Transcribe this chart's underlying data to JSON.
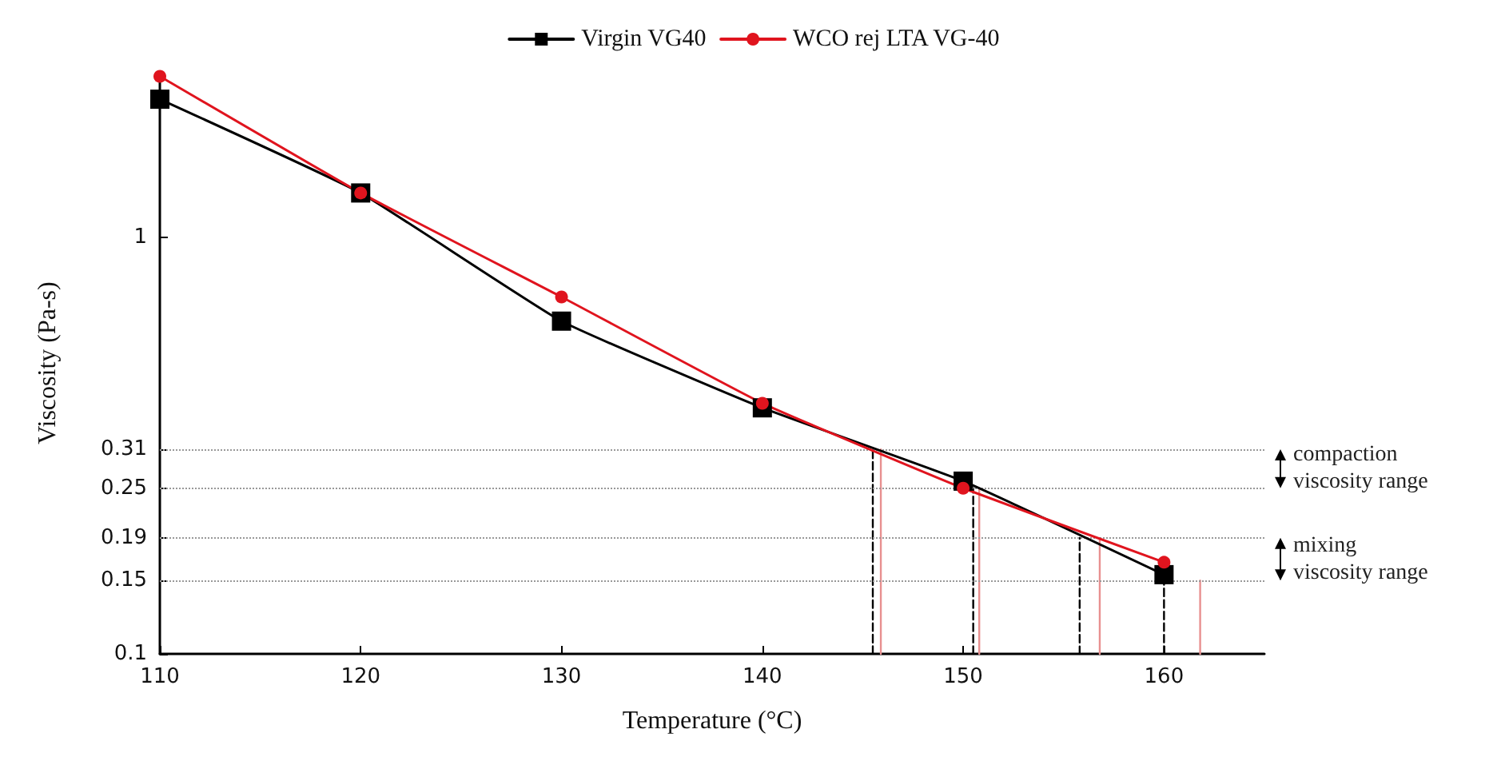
{
  "chart_data": {
    "type": "line",
    "xlabel": "Temperature (°C)",
    "ylabel": "Viscosity (Pa-s)",
    "log": "y",
    "xlim": [
      110,
      165
    ],
    "xticks": [
      110,
      120,
      130,
      140,
      150,
      160
    ],
    "ylim": [
      0.1,
      2.5
    ],
    "yticks": [
      0.1,
      0.15,
      0.19,
      0.25,
      0.31,
      1
    ],
    "x": [
      110,
      120,
      130,
      140,
      150,
      160
    ],
    "series": [
      {
        "name": "Virgin VG40",
        "color": "#000000",
        "values": [
          2.15,
          1.28,
          0.63,
          0.39,
          0.26,
          0.155
        ],
        "marker": "square"
      },
      {
        "name": "WCO rej LTA VG-40",
        "color": "#e0141e",
        "values": [
          2.44,
          1.28,
          0.72,
          0.4,
          0.25,
          0.166
        ],
        "marker": "circle"
      },
      {
        "color": "#000000",
        "x": [
          145.5,
          145.5
        ],
        "values": [
          0.1,
          0.31
        ],
        "marker": "none",
        "line_style": "dashed"
      },
      {
        "color": "#e89090",
        "x": [
          145.9,
          145.9
        ],
        "values": [
          0.1,
          0.31
        ],
        "marker": "none",
        "line_style": "solid"
      },
      {
        "color": "#000000",
        "x": [
          150.5,
          150.5
        ],
        "values": [
          0.1,
          0.25
        ],
        "marker": "none",
        "line_style": "dashed"
      },
      {
        "color": "#e89090",
        "x": [
          150.8,
          150.8
        ],
        "values": [
          0.1,
          0.25
        ],
        "marker": "none",
        "line_style": "solid"
      },
      {
        "color": "#000000",
        "x": [
          155.8,
          155.8
        ],
        "values": [
          0.1,
          0.19
        ],
        "marker": "none",
        "line_style": "dashed"
      },
      {
        "color": "#e89090",
        "x": [
          156.8,
          156.8
        ],
        "values": [
          0.1,
          0.19
        ],
        "marker": "none",
        "line_style": "solid"
      },
      {
        "color": "#000000",
        "x": [
          160,
          160
        ],
        "values": [
          0.1,
          0.15
        ],
        "marker": "none",
        "line_style": "dashed"
      },
      {
        "color": "#e89090",
        "x": [
          161.8,
          161.8
        ],
        "values": [
          0.1,
          0.15
        ],
        "marker": "none",
        "line_style": "solid"
      }
    ],
    "ref_lines": [
      {
        "axis": "y",
        "value": 0.31,
        "color": "#999999",
        "line_style": "dotted"
      },
      {
        "axis": "y",
        "value": 0.25,
        "color": "#999999",
        "line_style": "dotted"
      },
      {
        "axis": "y",
        "value": 0.19,
        "color": "#999999",
        "line_style": "dotted"
      },
      {
        "axis": "y",
        "value": 0.15,
        "color": "#999999",
        "line_style": "dotted"
      }
    ],
    "annotations": [
      "compaction\nviscosity range",
      "mixing\nviscosity range"
    ],
    "legend": "top",
    "grid": false
  }
}
